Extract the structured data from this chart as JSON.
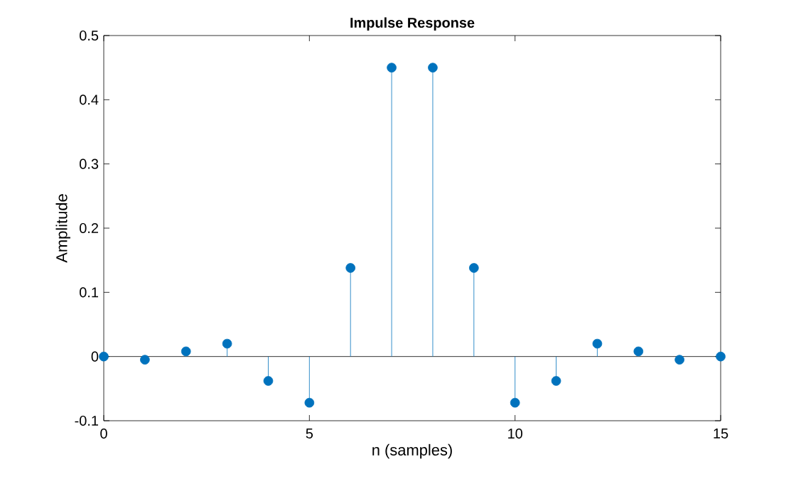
{
  "chart_data": {
    "type": "lollipop",
    "title": "Impulse Response",
    "xlabel": "n (samples)",
    "ylabel": "Amplitude",
    "x": [
      0,
      1,
      2,
      3,
      4,
      5,
      6,
      7,
      8,
      9,
      10,
      11,
      12,
      13,
      14,
      15
    ],
    "values": [
      0,
      -0.005,
      0.008,
      0.02,
      -0.038,
      -0.072,
      0.138,
      0.45,
      0.45,
      0.138,
      -0.072,
      -0.038,
      0.02,
      0.008,
      -0.005,
      0
    ],
    "color": "#0072bd",
    "marker": "circle",
    "xlim": [
      0,
      15
    ],
    "ylim": [
      -0.1,
      0.5
    ],
    "xticks": [
      0,
      5,
      10,
      15
    ],
    "yticks": [
      {
        "value": -0.1,
        "label": "-0.1"
      },
      0,
      {
        "value": 0.1,
        "label": "0.1"
      },
      {
        "value": 0.2,
        "label": "0.2"
      },
      {
        "value": 0.3,
        "label": "0.3"
      },
      {
        "value": 0.4,
        "label": "0.4"
      },
      {
        "value": 0.5,
        "label": "0.5"
      }
    ],
    "ref_lines": [
      {
        "axis": "y",
        "value": 0,
        "color": "#000000"
      }
    ],
    "grid": false
  }
}
